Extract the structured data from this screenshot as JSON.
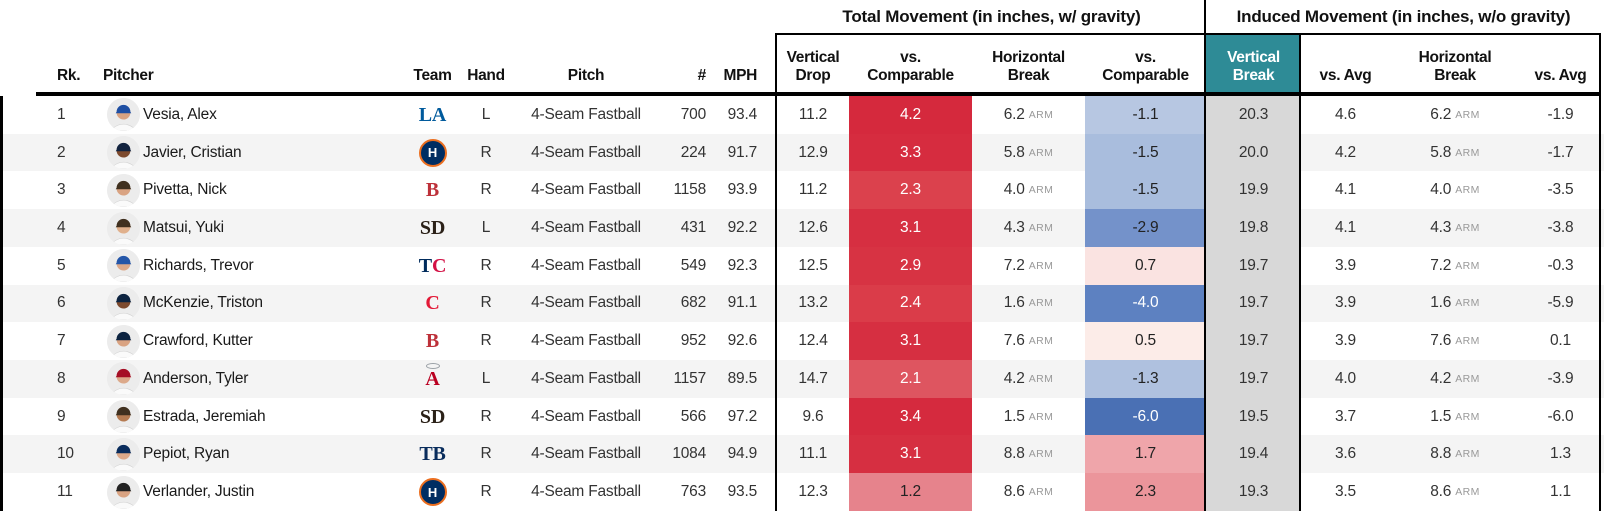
{
  "groups": {
    "total": "Total Movement (in inches, w/ gravity)",
    "induced": "Induced Movement (in inches, w/o gravity)"
  },
  "columns": {
    "rk": "Rk.",
    "pitcher": "Pitcher",
    "team": "Team",
    "hand": "Hand",
    "pitch": "Pitch",
    "count": "#",
    "mph": "MPH",
    "vertical_drop": "Vertical Drop",
    "vs_comparable": "vs. Comparable",
    "horizontal_break": "Horizontal Break",
    "vertical_break": "Vertical Break",
    "vs_avg": "vs. Avg"
  },
  "arm_label": "ARM",
  "colors": {
    "teal_header": "#2e8b96",
    "vertical_break_column": "#d8d8d8",
    "row_stripe": "#f4f4f4",
    "line_black": "#000000"
  },
  "rows": [
    {
      "rk": "1",
      "name": "Vesia, Alex",
      "avatar": {
        "skin": "#d9a382",
        "cap": "#1f4fa3"
      },
      "team": {
        "type": "text",
        "parts": [
          {
            "text": "LA",
            "color": "#005a9c"
          }
        ]
      },
      "hand": "L",
      "pitch": "4-Seam Fastball",
      "count": "700",
      "mph": "93.4",
      "total": {
        "vertical_drop": "11.2",
        "vs_comparable": {
          "value": "4.2",
          "bg": "#d5293d",
          "fg": "#ffffff"
        },
        "horizontal_break": "6.2",
        "vs_comparable_h": {
          "value": "-1.1",
          "bg": "#b7c7e2",
          "fg": "#222222"
        }
      },
      "induced": {
        "vertical_break": "20.3",
        "vs_avg_vertical": "4.6",
        "horizontal_break": "6.2",
        "vs_avg_horizontal": "-1.9"
      }
    },
    {
      "rk": "2",
      "name": "Javier, Cristian",
      "avatar": {
        "skin": "#7d4a2e",
        "cap": "#12233f"
      },
      "team": {
        "type": "circle",
        "parts": [
          {
            "text": "H",
            "color": "#ffffff"
          }
        ],
        "bg": "#002d62",
        "border": "#eb6e1f"
      },
      "hand": "R",
      "pitch": "4-Seam Fastball",
      "count": "224",
      "mph": "91.7",
      "total": {
        "vertical_drop": "12.9",
        "vs_comparable": {
          "value": "3.3",
          "bg": "#d62c3f",
          "fg": "#ffffff"
        },
        "horizontal_break": "5.8",
        "vs_comparable_h": {
          "value": "-1.5",
          "bg": "#a9bddd",
          "fg": "#222222"
        }
      },
      "induced": {
        "vertical_break": "20.0",
        "vs_avg_vertical": "4.2",
        "horizontal_break": "5.8",
        "vs_avg_horizontal": "-1.7"
      }
    },
    {
      "rk": "3",
      "name": "Pivetta, Nick",
      "avatar": {
        "skin": "#d9a382",
        "cap": "#40301f"
      },
      "team": {
        "type": "text",
        "parts": [
          {
            "text": "B",
            "color": "#bd3039"
          }
        ]
      },
      "hand": "R",
      "pitch": "4-Seam Fastball",
      "count": "1158",
      "mph": "93.9",
      "total": {
        "vertical_drop": "11.2",
        "vs_comparable": {
          "value": "2.3",
          "bg": "#db414d",
          "fg": "#ffffff"
        },
        "horizontal_break": "4.0",
        "vs_comparable_h": {
          "value": "-1.5",
          "bg": "#a9bddd",
          "fg": "#222222"
        }
      },
      "induced": {
        "vertical_break": "19.9",
        "vs_avg_vertical": "4.1",
        "horizontal_break": "4.0",
        "vs_avg_horizontal": "-3.5"
      }
    },
    {
      "rk": "4",
      "name": "Matsui, Yuki",
      "avatar": {
        "skin": "#e0b08c",
        "cap": "#40301f"
      },
      "team": {
        "type": "text",
        "parts": [
          {
            "text": "SD",
            "color": "#2b2118"
          }
        ]
      },
      "hand": "L",
      "pitch": "4-Seam Fastball",
      "count": "431",
      "mph": "92.2",
      "total": {
        "vertical_drop": "12.6",
        "vs_comparable": {
          "value": "3.1",
          "bg": "#d62f41",
          "fg": "#ffffff"
        },
        "horizontal_break": "4.3",
        "vs_comparable_h": {
          "value": "-2.9",
          "bg": "#7492ca",
          "fg": "#222222"
        }
      },
      "induced": {
        "vertical_break": "19.8",
        "vs_avg_vertical": "4.1",
        "horizontal_break": "4.3",
        "vs_avg_horizontal": "-3.8"
      }
    },
    {
      "rk": "5",
      "name": "Richards, Trevor",
      "avatar": {
        "skin": "#dca98a",
        "cap": "#2456a8"
      },
      "team": {
        "type": "text",
        "parts": [
          {
            "text": "T",
            "color": "#002b5c"
          },
          {
            "text": "C",
            "color": "#d31145"
          }
        ]
      },
      "hand": "R",
      "pitch": "4-Seam Fastball",
      "count": "549",
      "mph": "92.3",
      "total": {
        "vertical_drop": "12.5",
        "vs_comparable": {
          "value": "2.9",
          "bg": "#d73343",
          "fg": "#ffffff"
        },
        "horizontal_break": "7.2",
        "vs_comparable_h": {
          "value": "0.7",
          "bg": "#fae3e1",
          "fg": "#222222"
        }
      },
      "induced": {
        "vertical_break": "19.7",
        "vs_avg_vertical": "3.9",
        "horizontal_break": "7.2",
        "vs_avg_horizontal": "-0.3"
      }
    },
    {
      "rk": "6",
      "name": "McKenzie, Triston",
      "avatar": {
        "skin": "#7d4a2e",
        "cap": "#0c2340"
      },
      "team": {
        "type": "text",
        "parts": [
          {
            "text": "C",
            "color": "#e31937"
          }
        ]
      },
      "hand": "R",
      "pitch": "4-Seam Fastball",
      "count": "682",
      "mph": "91.1",
      "total": {
        "vertical_drop": "13.2",
        "vs_comparable": {
          "value": "2.4",
          "bg": "#da3c49",
          "fg": "#ffffff"
        },
        "horizontal_break": "1.6",
        "vs_comparable_h": {
          "value": "-4.0",
          "bg": "#5d81c1",
          "fg": "#ffffff"
        }
      },
      "induced": {
        "vertical_break": "19.7",
        "vs_avg_vertical": "3.9",
        "horizontal_break": "1.6",
        "vs_avg_horizontal": "-5.9"
      }
    },
    {
      "rk": "7",
      "name": "Crawford, Kutter",
      "avatar": {
        "skin": "#d9a382",
        "cap": "#0c2340"
      },
      "team": {
        "type": "text",
        "parts": [
          {
            "text": "B",
            "color": "#bd3039"
          }
        ]
      },
      "hand": "R",
      "pitch": "4-Seam Fastball",
      "count": "952",
      "mph": "92.6",
      "total": {
        "vertical_drop": "12.4",
        "vs_comparable": {
          "value": "3.1",
          "bg": "#d62f41",
          "fg": "#ffffff"
        },
        "horizontal_break": "7.6",
        "vs_comparable_h": {
          "value": "0.5",
          "bg": "#fcece8",
          "fg": "#222222"
        }
      },
      "induced": {
        "vertical_break": "19.7",
        "vs_avg_vertical": "3.9",
        "horizontal_break": "7.6",
        "vs_avg_horizontal": "0.1"
      }
    },
    {
      "rk": "8",
      "name": "Anderson, Tyler",
      "avatar": {
        "skin": "#dca98a",
        "cap": "#a50f25"
      },
      "team": {
        "type": "text",
        "parts": [
          {
            "text": "A",
            "color": "#ba0021"
          }
        ],
        "halo": true
      },
      "hand": "L",
      "pitch": "4-Seam Fastball",
      "count": "1157",
      "mph": "89.5",
      "total": {
        "vertical_drop": "14.7",
        "vs_comparable": {
          "value": "2.1",
          "bg": "#de5560",
          "fg": "#ffffff"
        },
        "horizontal_break": "4.2",
        "vs_comparable_h": {
          "value": "-1.3",
          "bg": "#afc1df",
          "fg": "#222222"
        }
      },
      "induced": {
        "vertical_break": "19.7",
        "vs_avg_vertical": "4.0",
        "horizontal_break": "4.2",
        "vs_avg_horizontal": "-3.9"
      }
    },
    {
      "rk": "9",
      "name": "Estrada, Jeremiah",
      "avatar": {
        "skin": "#b57b52",
        "cap": "#40301f"
      },
      "team": {
        "type": "text",
        "parts": [
          {
            "text": "SD",
            "color": "#2b2118"
          }
        ]
      },
      "hand": "R",
      "pitch": "4-Seam Fastball",
      "count": "566",
      "mph": "97.2",
      "total": {
        "vertical_drop": "9.6",
        "vs_comparable": {
          "value": "3.4",
          "bg": "#d52a3e",
          "fg": "#ffffff"
        },
        "horizontal_break": "1.5",
        "vs_comparable_h": {
          "value": "-6.0",
          "bg": "#4a70b4",
          "fg": "#ffffff"
        }
      },
      "induced": {
        "vertical_break": "19.5",
        "vs_avg_vertical": "3.7",
        "horizontal_break": "1.5",
        "vs_avg_horizontal": "-6.0"
      }
    },
    {
      "rk": "10",
      "name": "Pepiot, Ryan",
      "avatar": {
        "skin": "#dca98a",
        "cap": "#092c5c"
      },
      "team": {
        "type": "text",
        "parts": [
          {
            "text": "TB",
            "color": "#092c5c"
          }
        ]
      },
      "hand": "R",
      "pitch": "4-Seam Fastball",
      "count": "1084",
      "mph": "94.9",
      "total": {
        "vertical_drop": "11.1",
        "vs_comparable": {
          "value": "3.1",
          "bg": "#d62f41",
          "fg": "#ffffff"
        },
        "horizontal_break": "8.8",
        "vs_comparable_h": {
          "value": "1.7",
          "bg": "#efa5aa",
          "fg": "#222222"
        }
      },
      "induced": {
        "vertical_break": "19.4",
        "vs_avg_vertical": "3.6",
        "horizontal_break": "8.8",
        "vs_avg_horizontal": "1.3"
      }
    },
    {
      "rk": "11",
      "name": "Verlander, Justin",
      "avatar": {
        "skin": "#d9a382",
        "cap": "#222222"
      },
      "team": {
        "type": "circle",
        "parts": [
          {
            "text": "H",
            "color": "#ffffff"
          }
        ],
        "bg": "#002d62",
        "border": "#eb6e1f"
      },
      "hand": "R",
      "pitch": "4-Seam Fastball",
      "count": "763",
      "mph": "93.5",
      "total": {
        "vertical_drop": "12.3",
        "vs_comparable": {
          "value": "1.2",
          "bg": "#e6838c",
          "fg": "#222222"
        },
        "horizontal_break": "8.6",
        "vs_comparable_h": {
          "value": "2.3",
          "bg": "#eb959b",
          "fg": "#222222"
        }
      },
      "induced": {
        "vertical_break": "19.3",
        "vs_avg_vertical": "3.5",
        "horizontal_break": "8.6",
        "vs_avg_horizontal": "1.1"
      }
    }
  ]
}
